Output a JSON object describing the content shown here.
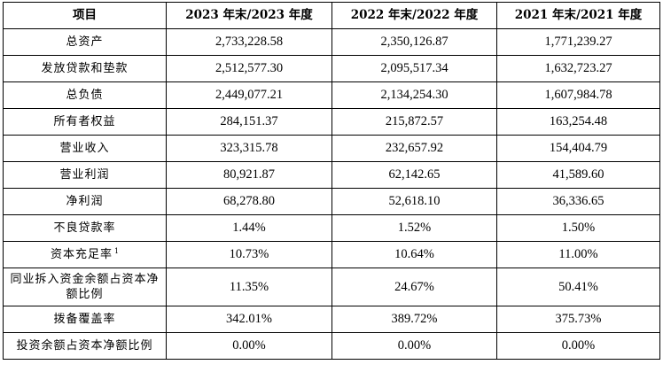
{
  "table": {
    "headers": [
      "项目",
      "2023 年末/2023 年度",
      "2022 年末/2022 年度",
      "2021 年末/2021 年度"
    ],
    "rows": [
      {
        "label": "总资产",
        "footnote": "",
        "values": [
          "2,733,228.58",
          "2,350,126.87",
          "1,771,239.27"
        ]
      },
      {
        "label": "发放贷款和垫款",
        "footnote": "",
        "values": [
          "2,512,577.30",
          "2,095,517.34",
          "1,632,723.27"
        ]
      },
      {
        "label": "总负债",
        "footnote": "",
        "values": [
          "2,449,077.21",
          "2,134,254.30",
          "1,607,984.78"
        ]
      },
      {
        "label": "所有者权益",
        "footnote": "",
        "values": [
          "284,151.37",
          "215,872.57",
          "163,254.48"
        ]
      },
      {
        "label": "营业收入",
        "footnote": "",
        "values": [
          "323,315.78",
          "232,657.92",
          "154,404.79"
        ]
      },
      {
        "label": "营业利润",
        "footnote": "",
        "values": [
          "80,921.87",
          "62,142.65",
          "41,589.60"
        ]
      },
      {
        "label": "净利润",
        "footnote": "",
        "values": [
          "68,278.80",
          "52,618.10",
          "36,336.65"
        ]
      },
      {
        "label": "不良贷款率",
        "footnote": "",
        "values": [
          "1.44%",
          "1.52%",
          "1.50%"
        ]
      },
      {
        "label": "资本充足率",
        "footnote": "1",
        "values": [
          "10.73%",
          "10.64%",
          "11.00%"
        ]
      },
      {
        "label": "同业拆入资金余额占资本净额比例",
        "footnote": "",
        "values": [
          "11.35%",
          "24.67%",
          "50.41%"
        ]
      },
      {
        "label": "拨备覆盖率",
        "footnote": "",
        "values": [
          "342.01%",
          "389.72%",
          "375.73%"
        ]
      },
      {
        "label": "投资余额占资本净额比例",
        "footnote": "",
        "values": [
          "0.00%",
          "0.00%",
          "0.00%"
        ]
      }
    ]
  }
}
